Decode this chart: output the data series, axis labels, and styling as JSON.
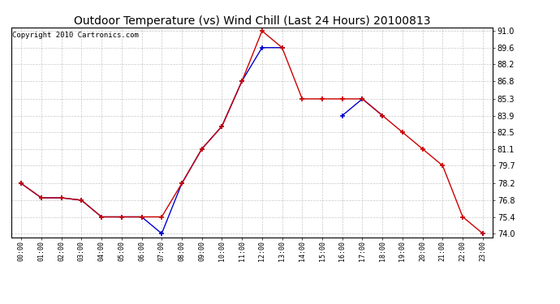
{
  "title": "Outdoor Temperature (vs) Wind Chill (Last 24 Hours) 20100813",
  "copyright": "Copyright 2010 Cartronics.com",
  "x_labels": [
    "00:00",
    "01:00",
    "02:00",
    "03:00",
    "04:00",
    "05:00",
    "06:00",
    "07:00",
    "08:00",
    "09:00",
    "10:00",
    "11:00",
    "12:00",
    "13:00",
    "14:00",
    "15:00",
    "16:00",
    "17:00",
    "18:00",
    "19:00",
    "20:00",
    "21:00",
    "22:00",
    "23:00"
  ],
  "temp_red": [
    78.2,
    77.0,
    77.0,
    76.8,
    75.4,
    75.4,
    75.4,
    75.4,
    78.2,
    81.1,
    83.0,
    86.8,
    91.0,
    89.6,
    85.3,
    85.3,
    85.3,
    85.3,
    83.9,
    82.5,
    81.1,
    79.7,
    75.4,
    74.0
  ],
  "wind_chill_blue": [
    78.2,
    77.0,
    77.0,
    76.8,
    75.4,
    75.4,
    75.4,
    74.0,
    78.2,
    81.1,
    83.0,
    86.8,
    89.6,
    89.6,
    null,
    null,
    83.9,
    85.3,
    83.9,
    null,
    null,
    null,
    null,
    74.0
  ],
  "ylim_min": 74.0,
  "ylim_max": 91.0,
  "yticks": [
    74.0,
    75.4,
    76.8,
    78.2,
    79.7,
    81.1,
    82.5,
    83.9,
    85.3,
    86.8,
    88.2,
    89.6,
    91.0
  ],
  "red_color": "#cc0000",
  "blue_color": "#0000cc",
  "bg_color": "#ffffff",
  "plot_bg_color": "#ffffff",
  "grid_color": "#bbbbbb",
  "title_fontsize": 10,
  "copyright_fontsize": 6.5,
  "figwidth": 6.9,
  "figheight": 3.75,
  "dpi": 100
}
